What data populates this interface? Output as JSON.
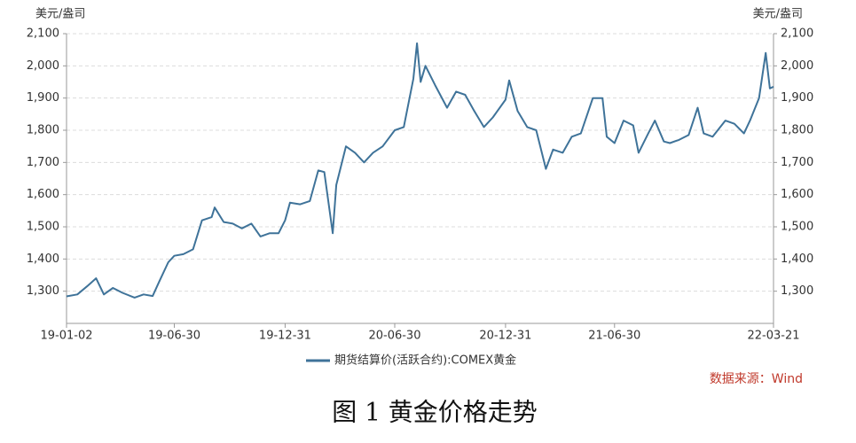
{
  "chart_data": {
    "type": "line",
    "y_label": "美元/盎司",
    "y2_label": "美元/盎司",
    "caption": "图 1  黄金价格走势",
    "source": "数据来源：Wind",
    "x": [
      "19-01-02",
      "19-01-20",
      "19-02-05",
      "19-02-20",
      "19-03-05",
      "19-03-20",
      "19-04-05",
      "19-04-25",
      "19-05-10",
      "19-05-25",
      "19-06-05",
      "19-06-20",
      "19-06-30",
      "19-07-15",
      "19-07-31",
      "19-08-15",
      "19-08-31",
      "19-09-05",
      "19-09-20",
      "19-10-05",
      "19-10-20",
      "19-11-05",
      "19-11-20",
      "19-12-05",
      "19-12-20",
      "19-12-31",
      "20-01-08",
      "20-01-25",
      "20-02-10",
      "20-02-24",
      "20-03-05",
      "20-03-19",
      "20-03-25",
      "20-04-10",
      "20-04-25",
      "20-05-10",
      "20-05-25",
      "20-06-10",
      "20-06-30",
      "20-07-15",
      "20-07-31",
      "20-08-06",
      "20-08-12",
      "20-08-20",
      "20-09-05",
      "20-09-25",
      "20-10-10",
      "20-10-25",
      "20-11-09",
      "20-11-25",
      "20-12-10",
      "20-12-31",
      "21-01-06",
      "21-01-20",
      "21-02-05",
      "21-02-20",
      "21-03-08",
      "21-03-20",
      "21-04-05",
      "21-04-20",
      "21-05-05",
      "21-05-25",
      "21-06-10",
      "21-06-17",
      "21-06-30",
      "21-07-15",
      "21-07-31",
      "21-08-09",
      "21-08-25",
      "21-09-05",
      "21-09-20",
      "21-09-30",
      "21-10-15",
      "21-10-31",
      "21-11-15",
      "21-11-25",
      "21-12-10",
      "21-12-31",
      "22-01-15",
      "22-01-31",
      "22-02-10",
      "22-02-25",
      "22-03-08",
      "22-03-15",
      "22-03-21"
    ],
    "series": [
      {
        "name": "期货结算价(活跃合约):COMEX黄金",
        "color": "#3f7399",
        "values": [
          1284,
          1290,
          1315,
          1340,
          1290,
          1310,
          1295,
          1280,
          1290,
          1285,
          1330,
          1390,
          1410,
          1415,
          1430,
          1520,
          1530,
          1560,
          1515,
          1510,
          1495,
          1510,
          1470,
          1480,
          1480,
          1520,
          1575,
          1570,
          1580,
          1675,
          1670,
          1480,
          1630,
          1750,
          1730,
          1700,
          1730,
          1750,
          1800,
          1810,
          1960,
          2070,
          1950,
          2000,
          1940,
          1870,
          1920,
          1910,
          1860,
          1810,
          1840,
          1895,
          1955,
          1860,
          1810,
          1800,
          1680,
          1740,
          1730,
          1780,
          1790,
          1900,
          1900,
          1780,
          1760,
          1830,
          1815,
          1730,
          1790,
          1830,
          1765,
          1760,
          1770,
          1785,
          1870,
          1790,
          1780,
          1830,
          1820,
          1790,
          1830,
          1900,
          2040,
          1930,
          1935
        ]
      }
    ],
    "xlim": [
      "19-01-02",
      "22-03-21"
    ],
    "xticks": [
      "19-01-02",
      "19-06-30",
      "19-12-31",
      "20-06-30",
      "20-12-31",
      "21-06-30",
      "22-03-21"
    ],
    "ylim": [
      1200,
      2100
    ],
    "yticks": [
      {
        "value": 1300,
        "label": "1,300"
      },
      {
        "value": 1400,
        "label": "1,400"
      },
      {
        "value": 1500,
        "label": "1,500"
      },
      {
        "value": 1600,
        "label": "1,600"
      },
      {
        "value": 1700,
        "label": "1,700"
      },
      {
        "value": 1800,
        "label": "1,800"
      },
      {
        "value": 1900,
        "label": "1,900"
      },
      {
        "value": 2000,
        "label": "2,000"
      },
      {
        "value": 2100,
        "label": "2,100"
      }
    ],
    "y2lim": [
      1200,
      2100
    ],
    "y2ticks": [
      {
        "value": 1300,
        "label": "1,300"
      },
      {
        "value": 1400,
        "label": "1,400"
      },
      {
        "value": 1500,
        "label": "1,500"
      },
      {
        "value": 1600,
        "label": "1,600"
      },
      {
        "value": 1700,
        "label": "1,700"
      },
      {
        "value": 1800,
        "label": "1,800"
      },
      {
        "value": 1900,
        "label": "1,900"
      },
      {
        "value": 2000,
        "label": "2,000"
      },
      {
        "value": 2100,
        "label": "2,100"
      }
    ],
    "grid": true
  }
}
